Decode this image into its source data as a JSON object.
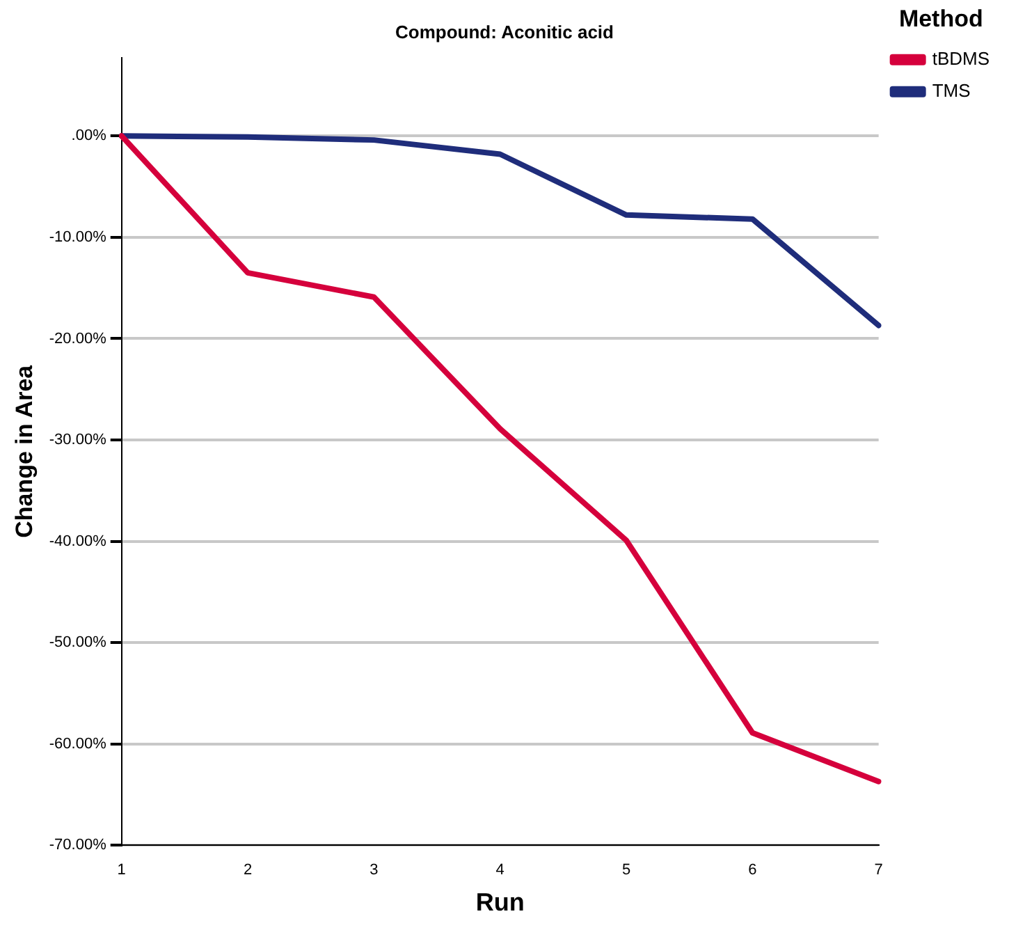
{
  "chart_data": {
    "type": "line",
    "title": "Compound: Aconitic acid",
    "xlabel": "Run",
    "ylabel": "Change in Area",
    "legend_title": "Method",
    "categories": [
      "1",
      "2",
      "3",
      "4",
      "5",
      "6",
      "7"
    ],
    "series": [
      {
        "name": "tBDMS",
        "color": "#d5003c",
        "values": [
          0,
          -13.5,
          -15.9,
          -28.9,
          -39.9,
          -58.9,
          -63.7
        ]
      },
      {
        "name": "TMS",
        "color": "#1f2d7b",
        "values": [
          0,
          -0.1,
          -0.4,
          -1.8,
          -7.8,
          -8.2,
          -18.7
        ]
      }
    ],
    "ylim": [
      -70,
      7.7
    ],
    "yticks": [
      {
        "value": -70,
        "label": "-70.00%"
      },
      {
        "value": -60,
        "label": "-60.00%"
      },
      {
        "value": -50,
        "label": "-50.00%"
      },
      {
        "value": -40,
        "label": "-40.00%"
      },
      {
        "value": -30,
        "label": "-30.00%"
      },
      {
        "value": -20,
        "label": "-20.00%"
      },
      {
        "value": -10,
        "label": "-10.00%"
      },
      {
        "value": 0,
        "label": ".00%"
      }
    ],
    "grid": "y",
    "legend": "right",
    "marker": "none",
    "line_style": "solid"
  }
}
